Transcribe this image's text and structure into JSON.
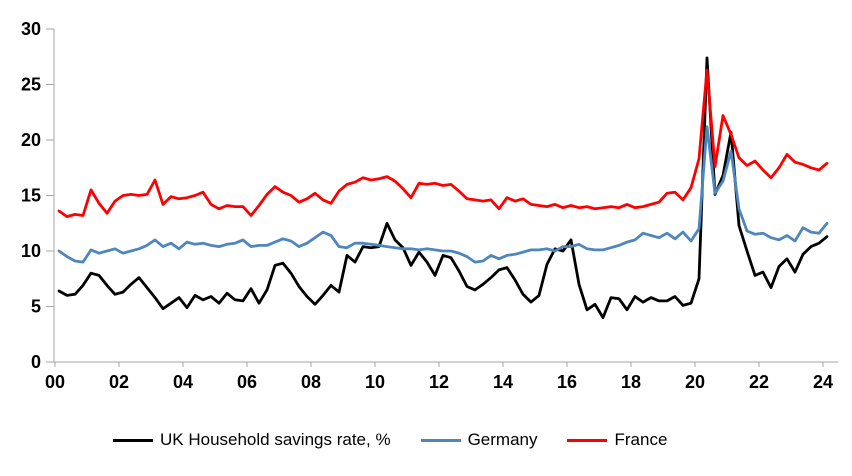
{
  "chart": {
    "legend_items": [
      {
        "label": "UK Household savings rate, %"
      },
      {
        "label": "Germany"
      },
      {
        "label": "France"
      }
    ],
    "axis_color": "#A6A6A6",
    "tick_label_color": "#000000",
    "background": "#FFFFFF"
  },
  "chart_data": {
    "type": "line",
    "title": "",
    "xlabel": "",
    "ylabel": "",
    "frequency": "quarterly",
    "x_start": "2000Q1",
    "x_end": "2024Q1",
    "ylim": [
      0,
      30
    ],
    "y_ticks": [
      0,
      5,
      10,
      15,
      20,
      25,
      30
    ],
    "x_tick_labels": [
      "00",
      "02",
      "04",
      "06",
      "08",
      "10",
      "12",
      "14",
      "16",
      "18",
      "20",
      "22",
      "24"
    ],
    "x_tick_years": [
      2000,
      2002,
      2004,
      2006,
      2008,
      2010,
      2012,
      2014,
      2016,
      2018,
      2020,
      2022,
      2024
    ],
    "grid": false,
    "legend_position": "bottom",
    "series": [
      {
        "name": "UK Household savings rate, %",
        "color": "#000000",
        "values": [
          6.4,
          6.0,
          6.1,
          6.9,
          8.0,
          7.8,
          6.9,
          6.1,
          6.3,
          7.0,
          7.6,
          6.7,
          5.8,
          4.8,
          5.3,
          5.8,
          4.9,
          6.0,
          5.6,
          5.9,
          5.3,
          6.2,
          5.6,
          5.5,
          6.6,
          5.3,
          6.5,
          8.7,
          8.9,
          8.0,
          6.8,
          5.9,
          5.2,
          6.0,
          6.9,
          6.3,
          9.6,
          9.0,
          10.4,
          10.3,
          10.4,
          12.5,
          11.0,
          10.3,
          8.7,
          9.9,
          9.0,
          7.8,
          9.6,
          9.4,
          8.2,
          6.8,
          6.5,
          7.0,
          7.6,
          8.3,
          8.5,
          7.4,
          6.1,
          5.4,
          6.0,
          8.8,
          10.2,
          10.0,
          11.0,
          7.0,
          4.7,
          5.2,
          4.0,
          5.8,
          5.7,
          4.7,
          5.9,
          5.4,
          5.8,
          5.5,
          5.5,
          5.9,
          5.1,
          5.3,
          7.5,
          27.4,
          15.1,
          16.8,
          20.7,
          12.3,
          10.0,
          7.8,
          8.1,
          6.7,
          8.6,
          9.3,
          8.1,
          9.7,
          10.4,
          10.7,
          11.3
        ]
      },
      {
        "name": "Germany",
        "color": "#4E86BD",
        "values": [
          10.0,
          9.5,
          9.1,
          9.0,
          10.1,
          9.8,
          10.0,
          10.2,
          9.8,
          10.0,
          10.2,
          10.5,
          11.0,
          10.4,
          10.7,
          10.2,
          10.8,
          10.6,
          10.7,
          10.5,
          10.4,
          10.6,
          10.7,
          11.0,
          10.4,
          10.5,
          10.5,
          10.8,
          11.1,
          10.9,
          10.4,
          10.7,
          11.2,
          11.7,
          11.4,
          10.4,
          10.3,
          10.7,
          10.7,
          10.6,
          10.5,
          10.4,
          10.3,
          10.2,
          10.2,
          10.1,
          10.2,
          10.1,
          10.0,
          10.0,
          9.8,
          9.5,
          9.0,
          9.1,
          9.6,
          9.3,
          9.6,
          9.7,
          9.9,
          10.1,
          10.1,
          10.2,
          10.0,
          10.4,
          10.4,
          10.6,
          10.2,
          10.1,
          10.1,
          10.3,
          10.5,
          10.8,
          11.0,
          11.6,
          11.4,
          11.2,
          11.6,
          11.1,
          11.7,
          10.9,
          12.0,
          21.2,
          15.2,
          16.3,
          19.0,
          13.8,
          11.8,
          11.5,
          11.6,
          11.2,
          11.0,
          11.4,
          10.9,
          12.1,
          11.7,
          11.6,
          12.5
        ]
      },
      {
        "name": "France",
        "color": "#FF0000",
        "values": [
          13.6,
          13.1,
          13.3,
          13.2,
          15.5,
          14.3,
          13.4,
          14.5,
          15.0,
          15.1,
          15.0,
          15.1,
          16.4,
          14.2,
          14.9,
          14.7,
          14.8,
          15.0,
          15.3,
          14.2,
          13.8,
          14.1,
          14.0,
          14.0,
          13.2,
          14.1,
          15.1,
          15.8,
          15.3,
          15.0,
          14.4,
          14.7,
          15.2,
          14.6,
          14.3,
          15.4,
          16.0,
          16.2,
          16.6,
          16.4,
          16.5,
          16.7,
          16.3,
          15.6,
          14.8,
          16.1,
          16.0,
          16.1,
          15.9,
          16.0,
          15.4,
          14.7,
          14.6,
          14.5,
          14.6,
          13.8,
          14.8,
          14.5,
          14.7,
          14.2,
          14.1,
          14.0,
          14.2,
          13.9,
          14.1,
          13.9,
          14.0,
          13.8,
          13.9,
          14.0,
          13.9,
          14.2,
          13.9,
          14.0,
          14.2,
          14.4,
          15.2,
          15.3,
          14.6,
          15.7,
          18.3,
          26.3,
          17.6,
          22.2,
          20.5,
          18.4,
          17.7,
          18.1,
          17.3,
          16.6,
          17.5,
          18.7,
          18.0,
          17.8,
          17.5,
          17.3,
          17.9
        ]
      }
    ]
  }
}
